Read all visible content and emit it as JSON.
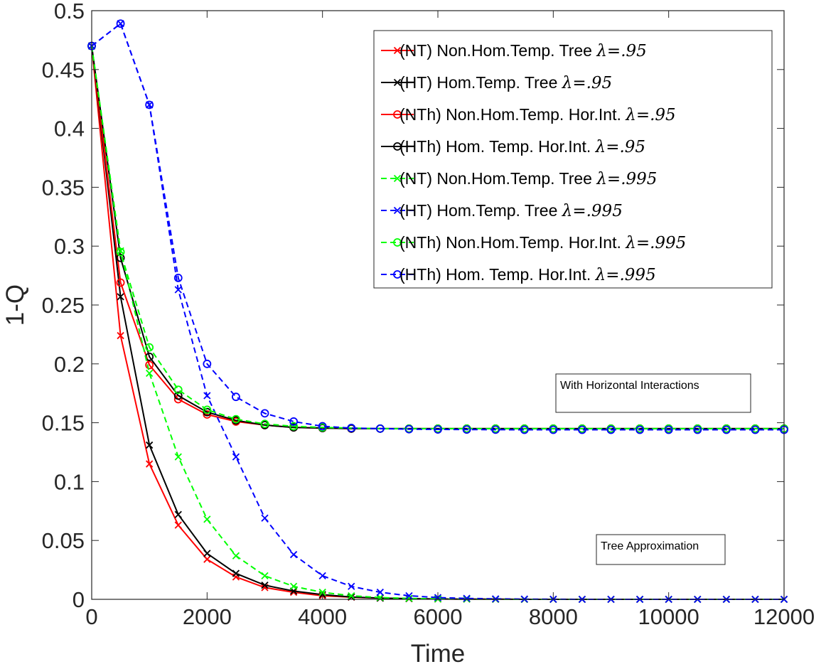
{
  "chart_data": {
    "type": "line",
    "title": "",
    "xlabel": "Time",
    "ylabel": "1-Q",
    "xlim": [
      0,
      12000
    ],
    "ylim": [
      0,
      0.5
    ],
    "xticks": [
      0,
      2000,
      4000,
      6000,
      8000,
      10000,
      12000
    ],
    "yticks": [
      0,
      0.05,
      0.1,
      0.15,
      0.2,
      0.25,
      0.3,
      0.35,
      0.4,
      0.45,
      0.5
    ],
    "grid": false,
    "legend_position": "top-right",
    "x": [
      0,
      500,
      1000,
      1500,
      2000,
      2500,
      3000,
      3500,
      4000,
      4500,
      5000,
      5500,
      6000,
      6500,
      7000,
      7500,
      8000,
      8500,
      9000,
      9500,
      10000,
      10500,
      11000,
      11500,
      12000
    ],
    "series": [
      {
        "label_prefix": "(NT) Non.Hom.Temp. Tree ",
        "lambda_label": "λ=.95",
        "color": "#ff0000",
        "dash": "solid",
        "marker": "x",
        "values": [
          0.47,
          0.224,
          0.115,
          0.063,
          0.034,
          0.019,
          0.01,
          0.006,
          0.003,
          0.0018,
          0.001,
          0.0005,
          0.0003,
          0.0002,
          0.0001,
          0,
          0,
          0,
          0,
          0,
          0,
          0,
          0,
          0,
          0
        ]
      },
      {
        "label_prefix": "(HT) Hom.Temp. Tree ",
        "lambda_label": "λ=.95",
        "color": "#000000",
        "dash": "solid",
        "marker": "x",
        "values": [
          0.47,
          0.257,
          0.131,
          0.072,
          0.039,
          0.022,
          0.012,
          0.007,
          0.004,
          0.002,
          0.001,
          0.0006,
          0.0003,
          0.0002,
          0.0001,
          0,
          0,
          0,
          0,
          0,
          0,
          0,
          0,
          0,
          0
        ]
      },
      {
        "label_prefix": "(NTh) Non.Hom.Temp. Hor.Int. ",
        "lambda_label": "λ=.95",
        "color": "#ff0000",
        "dash": "solid",
        "marker": "o",
        "values": [
          0.47,
          0.269,
          0.199,
          0.17,
          0.157,
          0.151,
          0.148,
          0.146,
          0.1455,
          0.145,
          0.145,
          0.145,
          0.145,
          0.145,
          0.145,
          0.145,
          0.145,
          0.145,
          0.145,
          0.145,
          0.145,
          0.145,
          0.145,
          0.145,
          0.145
        ]
      },
      {
        "label_prefix": "(HTh) Hom. Temp. Hor.Int. ",
        "lambda_label": "λ=.95",
        "color": "#000000",
        "dash": "solid",
        "marker": "o",
        "values": [
          0.47,
          0.29,
          0.206,
          0.173,
          0.159,
          0.152,
          0.148,
          0.146,
          0.1455,
          0.145,
          0.145,
          0.145,
          0.145,
          0.145,
          0.145,
          0.145,
          0.145,
          0.145,
          0.145,
          0.145,
          0.145,
          0.145,
          0.145,
          0.145,
          0.145
        ]
      },
      {
        "label_prefix": "(NT) Non.Hom.Temp. Tree ",
        "lambda_label": "λ=.995",
        "color": "#00ff00",
        "dash": "dashed",
        "marker": "x",
        "values": [
          0.47,
          0.296,
          0.192,
          0.121,
          0.068,
          0.037,
          0.02,
          0.011,
          0.006,
          0.003,
          0.0015,
          0.0008,
          0.0004,
          0.0002,
          0.0001,
          0,
          0,
          0,
          0,
          0,
          0,
          0,
          0,
          0,
          0
        ]
      },
      {
        "label_prefix": "(HT) Hom.Temp. Tree ",
        "lambda_label": "λ=.995",
        "color": "#0000ff",
        "dash": "dashed",
        "marker": "x",
        "values": [
          0.47,
          0.489,
          0.42,
          0.263,
          0.173,
          0.121,
          0.069,
          0.038,
          0.02,
          0.011,
          0.006,
          0.003,
          0.0015,
          0.0008,
          0.0004,
          0.0002,
          0.0001,
          0,
          0,
          0,
          0,
          0,
          0,
          0,
          0
        ]
      },
      {
        "label_prefix": "(NTh) Non.Hom.Temp. Hor.Int. ",
        "lambda_label": "λ=.995",
        "color": "#00ff00",
        "dash": "dashed",
        "marker": "o",
        "values": [
          0.47,
          0.295,
          0.214,
          0.178,
          0.161,
          0.153,
          0.149,
          0.147,
          0.146,
          0.1455,
          0.145,
          0.145,
          0.145,
          0.145,
          0.145,
          0.145,
          0.145,
          0.145,
          0.145,
          0.145,
          0.145,
          0.145,
          0.145,
          0.145,
          0.145
        ]
      },
      {
        "label_prefix": "(HTh) Hom. Temp. Hor.Int. ",
        "lambda_label": "λ=.995",
        "color": "#0000ff",
        "dash": "dashed",
        "marker": "o",
        "values": [
          0.47,
          0.489,
          0.42,
          0.273,
          0.2,
          0.172,
          0.158,
          0.151,
          0.147,
          0.1455,
          0.145,
          0.1445,
          0.1443,
          0.1442,
          0.1441,
          0.144,
          0.144,
          0.144,
          0.144,
          0.144,
          0.144,
          0.144,
          0.144,
          0.144,
          0.144
        ]
      }
    ],
    "annotations": [
      {
        "text": "With Horizontal Interactions"
      },
      {
        "text": "Tree Approximation"
      }
    ]
  }
}
